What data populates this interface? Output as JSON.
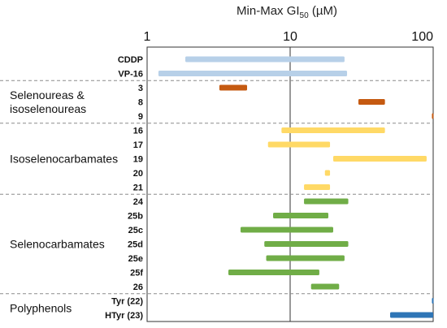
{
  "chart_data": {
    "type": "bar",
    "orientation": "horizontal-range",
    "title_prefix": "Min-Max GI",
    "title_subscript": "50",
    "title_suffix": " (µM)",
    "x_scale": "log",
    "xlim": [
      1,
      100
    ],
    "x_ticks": [
      {
        "value": 1,
        "label": "1"
      },
      {
        "value": 10,
        "label": "10"
      },
      {
        "value": 100,
        "label": "100"
      }
    ],
    "reference_line": 10,
    "groups": [
      {
        "label": "",
        "lines": [],
        "divider_after": true
      },
      {
        "label": "Selenoureas & isoselenoureas",
        "lines": [
          "Selenoureas &",
          "isoselenoureas"
        ],
        "divider_after": true
      },
      {
        "label": "Isoselenocarbamates",
        "lines": [
          "Isoselenocarbamates"
        ],
        "divider_after": true
      },
      {
        "label": "Selenocarbamates",
        "lines": [
          "Selenocarbamates"
        ],
        "divider_after": true
      },
      {
        "label": "Polyphenols",
        "lines": [
          "Polyphenols"
        ],
        "divider_after": false
      }
    ],
    "rows": [
      {
        "label": "CDDP",
        "group": 0,
        "min": 1.85,
        "max": 24,
        "color": "#b7d0e8"
      },
      {
        "label": "VP-16",
        "group": 0,
        "min": 1.2,
        "max": 25,
        "color": "#b7d0e8"
      },
      {
        "label": "3",
        "group": 1,
        "min": 3.2,
        "max": 5.0,
        "color": "#c55a11"
      },
      {
        "label": "8",
        "group": 1,
        "min": 30,
        "max": 46,
        "color": "#c55a11"
      },
      {
        "label": "9",
        "group": 1,
        "min": 98,
        "max": 100,
        "color": "#c55a11"
      },
      {
        "label": "16",
        "group": 2,
        "min": 8.7,
        "max": 46,
        "color": "#ffd966"
      },
      {
        "label": "17",
        "group": 2,
        "min": 7.0,
        "max": 19,
        "color": "#ffd966"
      },
      {
        "label": "19",
        "group": 2,
        "min": 20,
        "max": 90,
        "color": "#ffd966"
      },
      {
        "label": "20",
        "group": 2,
        "min": 17.5,
        "max": 19,
        "color": "#ffd966"
      },
      {
        "label": "21",
        "group": 2,
        "min": 12.5,
        "max": 19,
        "color": "#ffd966"
      },
      {
        "label": "24",
        "group": 3,
        "min": 12.5,
        "max": 25.5,
        "color": "#70ad47"
      },
      {
        "label": "25b",
        "group": 3,
        "min": 7.6,
        "max": 18.5,
        "color": "#70ad47"
      },
      {
        "label": "25c",
        "group": 3,
        "min": 4.5,
        "max": 20,
        "color": "#70ad47"
      },
      {
        "label": "25d",
        "group": 3,
        "min": 6.6,
        "max": 25.5,
        "color": "#70ad47"
      },
      {
        "label": "25e",
        "group": 3,
        "min": 6.8,
        "max": 24,
        "color": "#70ad47"
      },
      {
        "label": "25f",
        "group": 3,
        "min": 3.7,
        "max": 16,
        "color": "#70ad47"
      },
      {
        "label": "26",
        "group": 3,
        "min": 14,
        "max": 22,
        "color": "#70ad47"
      },
      {
        "label": "Tyr (22)",
        "group": 4,
        "min": 98,
        "max": 100,
        "color": "#2e75b6"
      },
      {
        "label": "HTyr (23)",
        "group": 4,
        "min": 50,
        "max": 100,
        "color": "#2e75b6"
      }
    ]
  }
}
